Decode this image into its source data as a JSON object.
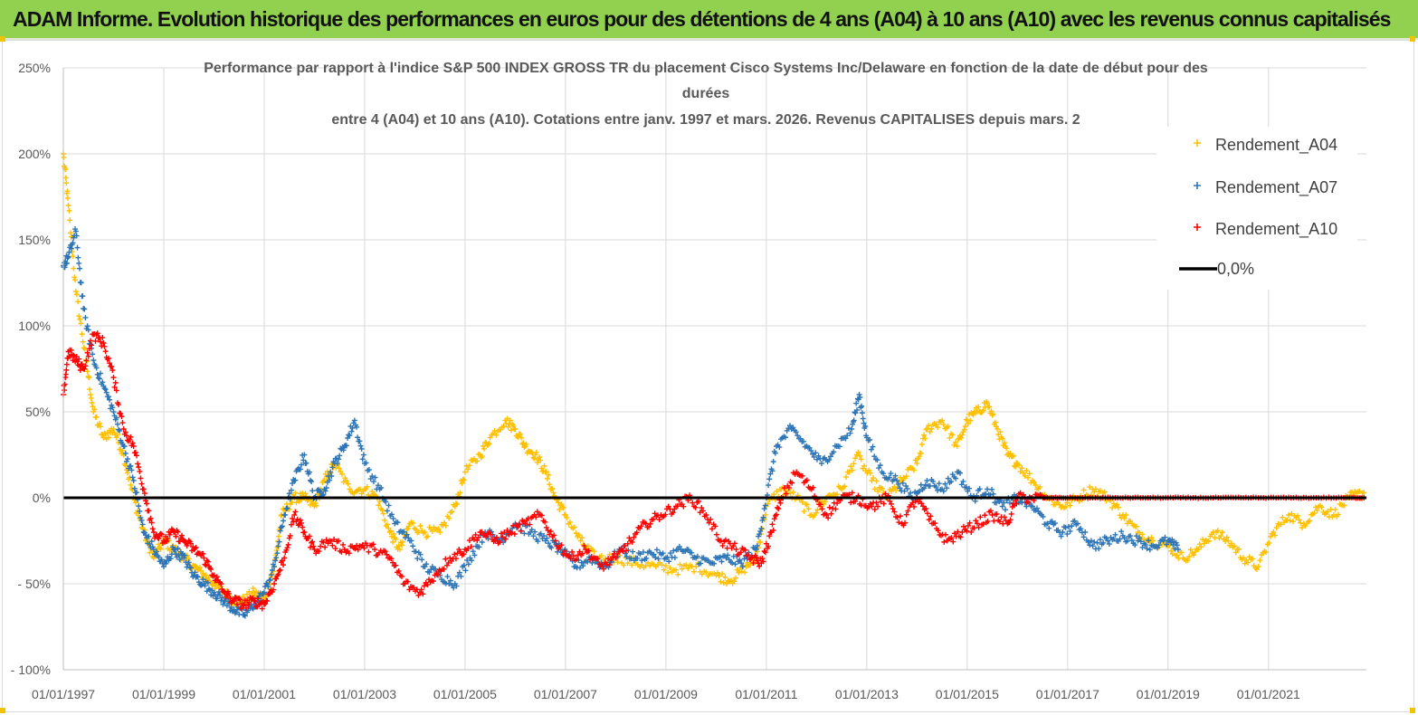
{
  "banner": {
    "title": "ADAM Informe. Evolution historique des performances en euros pour des détentions de 4 ans (A04) à 10 ans (A10) avec les revenus connus capitalisés"
  },
  "colors": {
    "banner_bg": "#92d050",
    "A04": "#ffc000",
    "A07": "#2e75b6",
    "A10": "#ff0000",
    "zero_line": "#000000",
    "grid": "#d9d9d9"
  },
  "chart_data": {
    "type": "scatter",
    "title_lines": [
      "Performance par rapport à l'indice S&P 500 INDEX GROSS TR  du placement Cisco Systems Inc/Delaware en fonction de la date de début pour des",
      "durées",
      "entre 4 (A04) et 10 ans (A10).  Cotations entre janv. 1997 et mars. 2026. Revenus CAPITALISES depuis mars. 2"
    ],
    "xlabel": "",
    "ylabel": "",
    "x_range": [
      1997.0,
      2022.95
    ],
    "y_range": [
      -100,
      250
    ],
    "y_ticks": [
      250,
      200,
      150,
      100,
      50,
      0,
      -50,
      -100
    ],
    "y_tick_labels": [
      "250%",
      "200%",
      "150%",
      "100%",
      "50%",
      "0%",
      "- 50%",
      "- 100%"
    ],
    "x_ticks": [
      1997,
      1999,
      2001,
      2003,
      2005,
      2007,
      2009,
      2011,
      2013,
      2015,
      2017,
      2019,
      2021
    ],
    "x_tick_labels": [
      "01/01/1997",
      "01/01/1999",
      "01/01/2001",
      "01/01/2003",
      "01/01/2005",
      "01/01/2007",
      "01/01/2009",
      "01/01/2011",
      "01/01/2013",
      "01/01/2015",
      "01/01/2017",
      "01/01/2019",
      "01/01/2021"
    ],
    "legend": [
      "Rendement_A04",
      "Rendement_A07",
      "Rendement_A10",
      "0,0%"
    ],
    "legend_position": "right",
    "series": [
      {
        "name": "Rendement_A04",
        "color": "#ffc000",
        "x": [
          1997.0,
          1997.1,
          1997.25,
          1997.45,
          1997.6,
          1997.8,
          1998.0,
          1998.2,
          1998.4,
          1998.6,
          1998.8,
          1999.0,
          1999.2,
          1999.4,
          1999.6,
          1999.8,
          2000.0,
          2000.2,
          2000.4,
          2000.6,
          2000.8,
          2001.0,
          2001.2,
          2001.35,
          2001.6,
          2001.8,
          2002.0,
          2002.2,
          2002.4,
          2002.7,
          2003.0,
          2003.25,
          2003.5,
          2003.7,
          2003.9,
          2004.2,
          2004.5,
          2004.8,
          2005.0,
          2005.3,
          2005.5,
          2005.8,
          2006.0,
          2006.2,
          2006.4,
          2006.6,
          2006.8,
          2007.0,
          2007.3,
          2007.6,
          2008.0,
          2008.4,
          2008.8,
          2009.2,
          2009.6,
          2010.0,
          2010.3,
          2010.6,
          2010.8,
          2011.0,
          2011.3,
          2011.6,
          2011.9,
          2012.2,
          2012.5,
          2012.8,
          2013.1,
          2013.4,
          2013.7,
          2014.0,
          2014.2,
          2014.5,
          2014.8,
          2015.0,
          2015.2,
          2015.4,
          2015.6,
          2015.8,
          2016.0,
          2016.3,
          2016.6,
          2016.9,
          2017.2,
          2017.5,
          2017.8,
          2018.1,
          2018.4,
          2018.7,
          2019.0,
          2019.3,
          2019.6,
          2019.9,
          2020.2,
          2020.5,
          2020.8,
          2021.1,
          2021.4,
          2021.7,
          2022.0,
          2022.3,
          2022.6,
          2022.9
        ],
        "y": [
          200,
          170,
          120,
          80,
          50,
          35,
          40,
          25,
          0,
          -20,
          -35,
          -25,
          -30,
          -35,
          -40,
          -45,
          -50,
          -55,
          -60,
          -60,
          -55,
          -60,
          -40,
          -10,
          0,
          0,
          -5,
          10,
          20,
          5,
          5,
          0,
          -20,
          -30,
          -15,
          -20,
          -20,
          -5,
          15,
          25,
          35,
          45,
          40,
          30,
          25,
          15,
          0,
          -10,
          -25,
          -35,
          -35,
          -38,
          -40,
          -42,
          -40,
          -45,
          -48,
          -40,
          -35,
          -5,
          5,
          0,
          -10,
          0,
          5,
          25,
          10,
          0,
          10,
          20,
          40,
          45,
          30,
          45,
          50,
          55,
          40,
          25,
          20,
          10,
          0,
          -5,
          0,
          5,
          0,
          -10,
          -20,
          -25,
          -28,
          -35,
          -30,
          -20,
          -25,
          -35,
          -40,
          -20,
          -10,
          -15,
          -5,
          -10,
          0,
          3
        ]
      },
      {
        "name": "Rendement_A07",
        "color": "#2e75b6",
        "x": [
          1997.0,
          1997.1,
          1997.25,
          1997.4,
          1997.6,
          1997.8,
          1998.0,
          1998.2,
          1998.4,
          1998.6,
          1998.8,
          1999.0,
          1999.2,
          1999.4,
          1999.6,
          1999.8,
          2000.0,
          2000.2,
          2000.4,
          2000.6,
          2000.8,
          2001.0,
          2001.2,
          2001.4,
          2001.6,
          2001.8,
          2002.0,
          2002.2,
          2002.4,
          2002.6,
          2002.8,
          2003.0,
          2003.3,
          2003.6,
          2003.9,
          2004.2,
          2004.5,
          2004.8,
          2005.1,
          2005.4,
          2005.7,
          2006.0,
          2006.3,
          2006.6,
          2006.9,
          2007.2,
          2007.5,
          2007.8,
          2008.1,
          2008.4,
          2008.7,
          2009.0,
          2009.3,
          2009.6,
          2009.9,
          2010.2,
          2010.5,
          2010.8,
          2011.0,
          2011.2,
          2011.5,
          2011.8,
          2012.1,
          2012.4,
          2012.7,
          2012.85,
          2013.0,
          2013.3,
          2013.6,
          2013.9,
          2014.2,
          2014.5,
          2014.8,
          2015.1,
          2015.4,
          2015.7,
          2016.0,
          2016.3,
          2016.6,
          2016.9,
          2017.2,
          2017.5,
          2017.8,
          2018.1,
          2018.4,
          2018.7,
          2019.0,
          2019.2
        ],
        "y": [
          135,
          140,
          155,
          110,
          80,
          65,
          50,
          30,
          10,
          -20,
          -30,
          -40,
          -30,
          -35,
          -45,
          -50,
          -55,
          -60,
          -65,
          -68,
          -62,
          -55,
          -40,
          -10,
          10,
          25,
          0,
          5,
          20,
          30,
          45,
          20,
          5,
          -15,
          -25,
          -40,
          -45,
          -50,
          -35,
          -20,
          -25,
          -15,
          -20,
          -25,
          -30,
          -40,
          -35,
          -40,
          -30,
          -35,
          -32,
          -35,
          -30,
          -35,
          -38,
          -35,
          -38,
          -30,
          0,
          30,
          40,
          30,
          20,
          30,
          40,
          60,
          35,
          15,
          10,
          0,
          10,
          5,
          15,
          0,
          5,
          -5,
          0,
          -5,
          -15,
          -20,
          -15,
          -28,
          -25,
          -22,
          -25,
          -28,
          -25,
          -30
        ]
      },
      {
        "name": "Rendement_A10",
        "color": "#ff0000",
        "x": [
          1997.0,
          1997.1,
          1997.25,
          1997.4,
          1997.6,
          1997.8,
          1998.0,
          1998.2,
          1998.4,
          1998.6,
          1998.8,
          1999.0,
          1999.2,
          1999.4,
          1999.6,
          1999.8,
          2000.0,
          2000.2,
          2000.4,
          2000.6,
          2000.8,
          2001.0,
          2001.2,
          2001.4,
          2001.6,
          2001.8,
          2002.0,
          2002.3,
          2002.6,
          2002.9,
          2003.2,
          2003.5,
          2003.8,
          2004.1,
          2004.4,
          2004.7,
          2005.0,
          2005.3,
          2005.6,
          2005.9,
          2006.2,
          2006.5,
          2006.8,
          2007.1,
          2007.4,
          2007.7,
          2008.0,
          2008.3,
          2008.6,
          2008.9,
          2009.2,
          2009.5,
          2009.8,
          2010.1,
          2010.4,
          2010.7,
          2010.9,
          2011.1,
          2011.3,
          2011.6,
          2011.9,
          2012.2,
          2012.5,
          2012.8,
          2013.1,
          2013.4,
          2013.7,
          2014.0,
          2014.3,
          2014.6,
          2014.9,
          2015.2,
          2015.5,
          2015.8,
          2016.0,
          2016.3,
          2016.6,
          2017.0,
          2017.5,
          2018.0,
          2018.5,
          2019.0,
          2019.5,
          2020.0,
          2020.5,
          2021.0,
          2021.5,
          2022.0,
          2022.5,
          2022.9
        ],
        "y": [
          60,
          85,
          80,
          75,
          95,
          90,
          70,
          40,
          30,
          5,
          -20,
          -25,
          -20,
          -25,
          -30,
          -35,
          -45,
          -55,
          -60,
          -62,
          -60,
          -62,
          -50,
          -35,
          -10,
          -20,
          -30,
          -25,
          -30,
          -28,
          -30,
          -35,
          -50,
          -55,
          -45,
          -35,
          -30,
          -20,
          -25,
          -20,
          -15,
          -10,
          -25,
          -35,
          -30,
          -40,
          -35,
          -25,
          -15,
          -10,
          -5,
          0,
          -10,
          -25,
          -30,
          -35,
          -38,
          -20,
          0,
          15,
          5,
          -10,
          0,
          0,
          -5,
          0,
          -15,
          0,
          -15,
          -25,
          -20,
          -15,
          -10,
          -15,
          0,
          0,
          0,
          0,
          0,
          0,
          0,
          0,
          0,
          0,
          0,
          0,
          0,
          0,
          0,
          0
        ]
      }
    ]
  }
}
